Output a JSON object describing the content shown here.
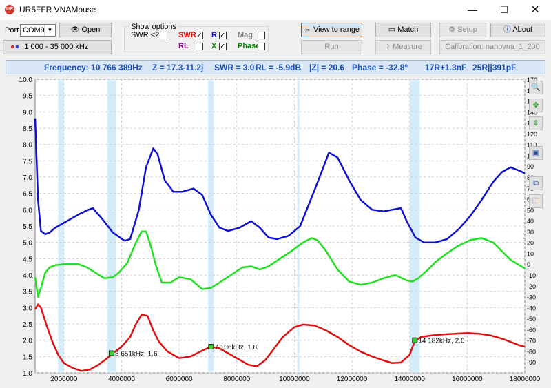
{
  "window": {
    "title": "UR5FFR VNAMouse",
    "icon_text": "UR",
    "controls": {
      "minimize": "—",
      "maximize": "☐",
      "close": "✕"
    }
  },
  "toolbar": {
    "port_label": "Port",
    "port_value": "COM9",
    "open_label": "Open",
    "range_label": "1 000 - 35 000 kHz",
    "view_to_range_label": "View to range",
    "run_label": "Run",
    "match_label": "Match",
    "measure_label": "Measure",
    "setup_label": "Setup",
    "about_label": "About",
    "calibration_label": "Calibration: nanovna_1_200"
  },
  "show_options": {
    "title": "Show options",
    "items": [
      {
        "label": "SWR <2",
        "checked": false,
        "color": "#000000"
      },
      {
        "label": "SWR",
        "checked": true,
        "color": "#e01010"
      },
      {
        "label": "R",
        "checked": true,
        "color": "#1010c0"
      },
      {
        "label": "Mag",
        "checked": false,
        "color": "#808080"
      },
      {
        "label": "RL",
        "checked": false,
        "color": "#800080"
      },
      {
        "label": "X",
        "checked": true,
        "color": "#10a010"
      },
      {
        "label": "Phase",
        "checked": false,
        "color": "#008000"
      }
    ]
  },
  "info": {
    "frequency": "Frequency: 10 766 389Hz",
    "z": "Z = 17.3-11.2j",
    "swr": "SWR = 3.0",
    "rl": "RL = -5.9dB",
    "absz": "|Z| = 20.6",
    "phase": "Phase = -32.8°",
    "series": "17R+1.3nF",
    "parallel": "25R||391pF"
  },
  "sidebar_icons": [
    "zoom-icon",
    "fit-icon",
    "vertical-scale-icon",
    "screenshot-icon",
    "copy-icon",
    "save-icon"
  ],
  "chart_data": {
    "type": "line",
    "x_unit": "Hz",
    "xlim": [
      1000000,
      18000000
    ],
    "x_ticks": [
      2000000,
      4000000,
      6000000,
      8000000,
      10000000,
      12000000,
      14000000,
      16000000,
      18000000
    ],
    "x_tick_labels": [
      "2000000",
      "4000000",
      "6000000",
      "8000000",
      "10000000",
      "12000000",
      "14000000",
      "16000000",
      "18000000"
    ],
    "y_left": {
      "lim": [
        1.0,
        10.0
      ],
      "ticks": [
        "1.0",
        "1.5",
        "2.0",
        "2.5",
        "3.0",
        "3.5",
        "4.0",
        "4.5",
        "5.0",
        "5.5",
        "6.0",
        "6.5",
        "7.0",
        "7.5",
        "8.0",
        "8.5",
        "9.0",
        "9.5",
        "10.0"
      ]
    },
    "y_right": {
      "lim": [
        -100,
        170
      ],
      "ticks": [
        "170",
        "160",
        "150",
        "140",
        "130",
        "120",
        "110",
        "100",
        "90",
        "80",
        "70",
        "60",
        "50",
        "40",
        "30",
        "20",
        "10",
        "0",
        "-10",
        "-20",
        "-30",
        "-40",
        "-50",
        "-60",
        "-70",
        "-80",
        "-90"
      ]
    },
    "grid": true,
    "highlight_bands_hz": [
      [
        1800000,
        2000000
      ],
      [
        3500000,
        3800000
      ],
      [
        7000000,
        7200000
      ],
      [
        10100000,
        10150000
      ],
      [
        14000000,
        14350000
      ]
    ],
    "series": [
      {
        "color": "#1010d0",
        "axis": "left",
        "x": [
          1000000,
          1100000,
          1200000,
          1350000,
          1500000,
          1700000,
          2000000,
          2500000,
          2800000,
          3000000,
          3300000,
          3700000,
          4100000,
          4300000,
          4600000,
          4850000,
          5100000,
          5250000,
          5500000,
          5800000,
          6100000,
          6500000,
          6800000,
          7100000,
          7400000,
          7700000,
          8100000,
          8500000,
          8800000,
          9100000,
          9400000,
          9800000,
          10200000,
          10700000,
          11200000,
          11500000,
          11900000,
          12300000,
          12700000,
          13100000,
          13400000,
          13700000,
          13900000,
          14200000,
          14500000,
          14900000,
          15300000,
          15700000,
          16100000,
          16500000,
          16900000,
          17200000,
          17500000,
          17800000,
          18000000
        ],
        "y": [
          8.8,
          6.3,
          5.35,
          5.25,
          5.3,
          5.45,
          5.6,
          5.85,
          5.98,
          6.05,
          5.75,
          5.3,
          5.05,
          5.1,
          6.0,
          7.3,
          7.88,
          7.7,
          6.9,
          6.55,
          6.55,
          6.65,
          6.45,
          5.85,
          5.45,
          5.35,
          5.45,
          5.65,
          5.45,
          5.15,
          5.1,
          5.2,
          5.5,
          6.6,
          7.75,
          7.6,
          6.9,
          6.3,
          6.0,
          5.95,
          6.0,
          6.05,
          5.65,
          5.15,
          5.0,
          5.0,
          5.1,
          5.4,
          5.8,
          6.3,
          6.85,
          7.15,
          7.3,
          7.2,
          7.12
        ]
      },
      {
        "color": "#20e020",
        "axis": "right",
        "x": [
          1000000,
          1100000,
          1200000,
          1350000,
          1500000,
          1700000,
          2000000,
          2500000,
          2800000,
          3100000,
          3400000,
          3700000,
          3900000,
          4200000,
          4500000,
          4700000,
          4850000,
          5000000,
          5200000,
          5400000,
          5700000,
          6000000,
          6400000,
          6800000,
          7100000,
          7400000,
          7800000,
          8200000,
          8500000,
          8800000,
          9100000,
          9500000,
          9900000,
          10300000,
          10600000,
          10800000,
          11100000,
          11500000,
          11900000,
          12300000,
          12700000,
          13100000,
          13500000,
          13900000,
          14100000,
          14300000,
          14600000,
          14900000,
          15300000,
          15700000,
          16100000,
          16500000,
          16900000,
          17200000,
          17500000,
          18000000
        ],
        "y": [
          -12,
          -30,
          -22,
          -8,
          -3,
          -1,
          0,
          0,
          -3,
          -8,
          -13,
          -12,
          -8,
          1,
          20,
          30,
          30,
          18,
          -2,
          -17,
          -17,
          -12,
          -14,
          -23,
          -22,
          -17,
          -10,
          -3,
          -2,
          -5,
          -2,
          5,
          12,
          20,
          24,
          22,
          12,
          -5,
          -16,
          -19,
          -17,
          -13,
          -10,
          -15,
          -16,
          -13,
          -6,
          2,
          10,
          17,
          22,
          24,
          20,
          12,
          4,
          -4
        ]
      },
      {
        "color": "#e01010",
        "axis": "left",
        "x": [
          1000000,
          1100000,
          1200000,
          1400000,
          1600000,
          1800000,
          2000000,
          2300000,
          2600000,
          2900000,
          3200000,
          3500000,
          3700000,
          4000000,
          4300000,
          4500000,
          4700000,
          4900000,
          5100000,
          5300000,
          5600000,
          6000000,
          6400000,
          6800000,
          7100000,
          7400000,
          7800000,
          8100000,
          8400000,
          8700000,
          9000000,
          9300000,
          9600000,
          10000000,
          10300000,
          10700000,
          11100000,
          11500000,
          11900000,
          12300000,
          12700000,
          13100000,
          13400000,
          13700000,
          14000000,
          14182000,
          14400000,
          14800000,
          15200000,
          15600000,
          16000000,
          16400000,
          16800000,
          17200000,
          17500000,
          17800000,
          18000000
        ],
        "y": [
          2.95,
          3.1,
          3.0,
          2.45,
          1.95,
          1.55,
          1.3,
          1.15,
          1.06,
          1.1,
          1.25,
          1.45,
          1.6,
          1.8,
          2.1,
          2.5,
          2.78,
          2.75,
          2.3,
          1.95,
          1.65,
          1.45,
          1.5,
          1.68,
          1.8,
          1.75,
          1.55,
          1.4,
          1.25,
          1.2,
          1.4,
          1.75,
          2.1,
          2.4,
          2.48,
          2.45,
          2.3,
          2.1,
          1.85,
          1.65,
          1.5,
          1.38,
          1.3,
          1.32,
          1.55,
          1.98,
          2.1,
          2.15,
          2.18,
          2.2,
          2.22,
          2.2,
          2.15,
          2.05,
          1.95,
          1.85,
          1.8
        ]
      }
    ],
    "markers": [
      {
        "x": 3651000,
        "y": 1.6,
        "label": "3 651kHz, 1.6"
      },
      {
        "x": 7106000,
        "y": 1.8,
        "label": "7 106kHz, 1.8"
      },
      {
        "x": 14182000,
        "y": 2.0,
        "label": "14 182kHz, 2.0"
      }
    ]
  }
}
